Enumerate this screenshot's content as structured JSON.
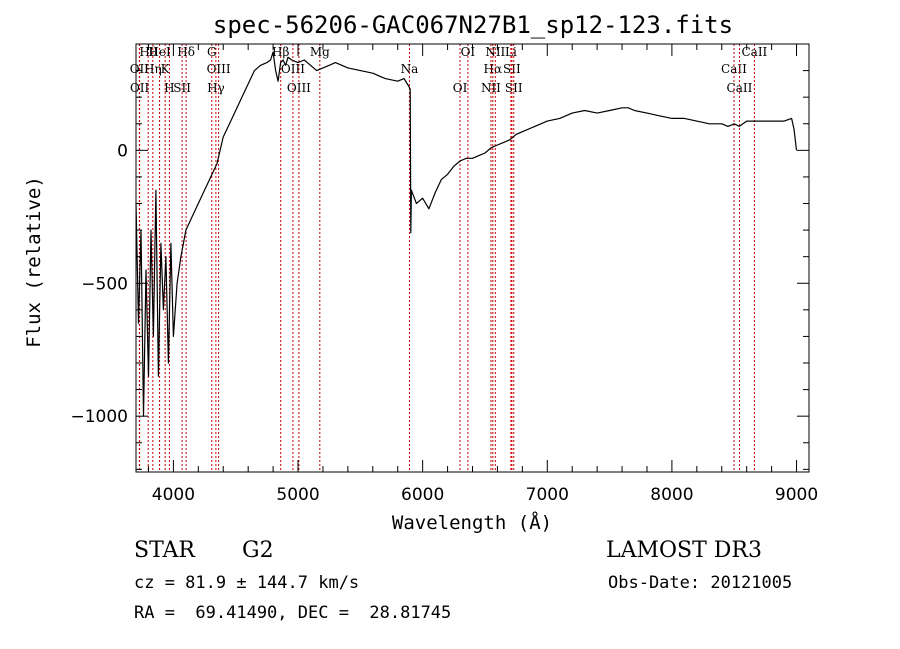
{
  "chart_data": {
    "type": "line",
    "title": "spec-56206-GAC067N27B1_sp12-123.fits",
    "xlabel": "Wavelength (Å)",
    "ylabel": "Flux (relative)",
    "xlim": [
      3700,
      9100
    ],
    "ylim": [
      -1210,
      400
    ],
    "xticks": [
      4000,
      5000,
      6000,
      7000,
      8000,
      9000
    ],
    "yticks": [
      0,
      -500,
      -1000
    ],
    "grid": false,
    "line_color": "#000000",
    "marker_color": "#cc0000",
    "series": [
      {
        "x": [
          3700,
          3720,
          3740,
          3760,
          3780,
          3800,
          3820,
          3840,
          3860,
          3880,
          3900,
          3920,
          3940,
          3960,
          3980,
          4000,
          4030,
          4060,
          4100,
          4150,
          4200,
          4250,
          4300,
          4350,
          4400,
          4450,
          4500,
          4550,
          4600,
          4650,
          4700,
          4750,
          4780,
          4800,
          4820,
          4840,
          4860,
          4880,
          4900,
          4920,
          4950,
          5000,
          5050,
          5100,
          5150,
          5200,
          5250,
          5300,
          5400,
          5500,
          5600,
          5700,
          5800,
          5850,
          5890,
          5900,
          5905,
          5910,
          5950,
          6000,
          6050,
          6100,
          6150,
          6200,
          6250,
          6300,
          6350,
          6400,
          6450,
          6500,
          6550,
          6600,
          6650,
          6700,
          6750,
          6800,
          6900,
          7000,
          7100,
          7200,
          7300,
          7400,
          7500,
          7600,
          7650,
          7700,
          7800,
          7900,
          8000,
          8100,
          8200,
          8300,
          8400,
          8450,
          8500,
          8540,
          8600,
          8700,
          8800,
          8900,
          8960,
          8980,
          9000
        ],
        "y": [
          -200,
          -650,
          -300,
          -1000,
          -450,
          -850,
          -300,
          -700,
          -150,
          -850,
          -350,
          -600,
          -400,
          -800,
          -350,
          -700,
          -500,
          -400,
          -300,
          -250,
          -200,
          -150,
          -100,
          -50,
          50,
          100,
          150,
          200,
          250,
          300,
          320,
          330,
          340,
          370,
          300,
          260,
          330,
          340,
          320,
          350,
          340,
          330,
          340,
          320,
          300,
          310,
          320,
          330,
          310,
          300,
          290,
          270,
          260,
          270,
          240,
          230,
          -310,
          -150,
          -200,
          -180,
          -220,
          -160,
          -110,
          -90,
          -60,
          -40,
          -30,
          -30,
          -20,
          -10,
          10,
          20,
          30,
          40,
          60,
          70,
          90,
          110,
          120,
          140,
          150,
          140,
          150,
          160,
          160,
          150,
          140,
          130,
          120,
          120,
          110,
          100,
          100,
          90,
          100,
          90,
          110,
          110,
          110,
          110,
          120,
          80,
          0
        ]
      }
    ],
    "line_markers": [
      {
        "label": "Hθ",
        "x": 3798
      },
      {
        "label": "K",
        "x": 3934
      },
      {
        "label": "H",
        "x": 3968
      },
      {
        "label": "Hδ",
        "x": 4102
      },
      {
        "label": "OIII",
        "x": 4363
      },
      {
        "label": "Hγ",
        "x": 4341
      },
      {
        "label": "G",
        "x": 4308
      },
      {
        "label": "OII",
        "x": 3727
      },
      {
        "label": "OII",
        "x": 3729
      },
      {
        "label": "HeI",
        "x": 3889
      },
      {
        "label": "Hη",
        "x": 3835
      },
      {
        "label": "SII",
        "x": 4070
      },
      {
        "label": "Hβ",
        "x": 4861
      },
      {
        "label": "OIII",
        "x": 4959
      },
      {
        "label": "OIII",
        "x": 5007
      },
      {
        "label": "Mg",
        "x": 5175
      },
      {
        "label": "Na",
        "x": 5894
      },
      {
        "label": "OI",
        "x": 6300
      },
      {
        "label": "OI",
        "x": 6363
      },
      {
        "label": "Hα",
        "x": 6563
      },
      {
        "label": "NII",
        "x": 6548
      },
      {
        "label": "NII",
        "x": 6583
      },
      {
        "label": "SII",
        "x": 6716
      },
      {
        "label": "SII",
        "x": 6731
      },
      {
        "label": "Li",
        "x": 6708
      },
      {
        "label": "CaII",
        "x": 8498
      },
      {
        "label": "CaII",
        "x": 8542
      },
      {
        "label": "CaII",
        "x": 8662
      }
    ]
  },
  "info": {
    "object_class": "STAR",
    "subclass": "G2",
    "survey": "LAMOST DR3",
    "redshift": "cz = 81.9 ± 144.7 km/s",
    "obs_date": "Obs-Date: 20121005",
    "coords": "RA =  69.41490, DEC =  28.81745"
  }
}
